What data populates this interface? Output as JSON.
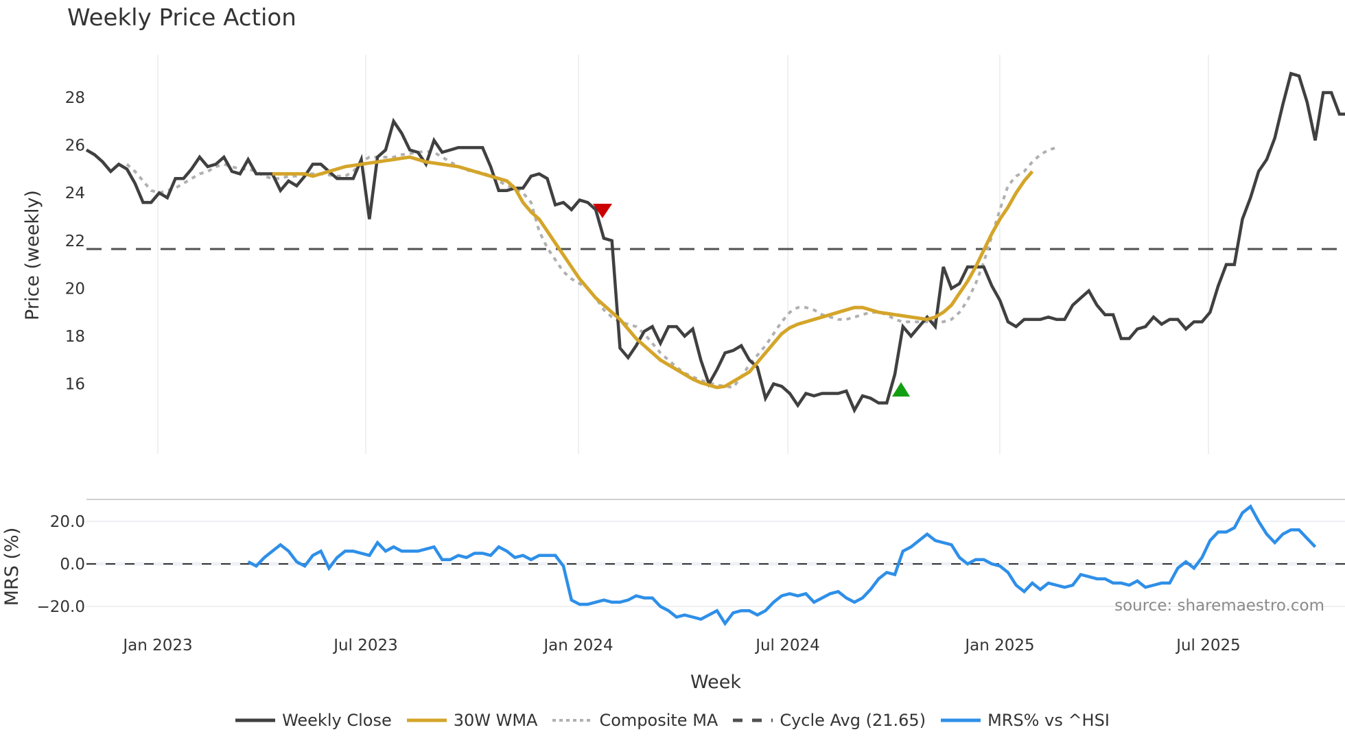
{
  "title": "Weekly Price Action",
  "source_label": "source: sharemaestro.com",
  "colors": {
    "close": "#404040",
    "wma": "#D4A52A",
    "composite": "#B0B0B0",
    "cycle": "#505050",
    "mrs": "#2E8FE8",
    "sell_marker": "#CC0000",
    "buy_marker": "#12A012",
    "grid": "#E8ECF0"
  },
  "legend": [
    {
      "key": "close",
      "label": "Weekly Close"
    },
    {
      "key": "wma",
      "label": "30W WMA"
    },
    {
      "key": "composite",
      "label": "Composite MA"
    },
    {
      "key": "cycle",
      "label": "Cycle Avg (21.65)"
    },
    {
      "key": "mrs",
      "label": "MRS% vs ^HSI"
    }
  ],
  "chart_data": [
    {
      "type": "line",
      "title": "Weekly Price Action",
      "xlabel": "Week",
      "ylabel": "Price (weekly)",
      "ylim": [
        14.5,
        29.8
      ],
      "yticks": [
        16,
        18,
        20,
        22,
        24,
        26,
        28
      ],
      "xticks": [
        "Jan 2023",
        "Jul 2023",
        "Jan 2024",
        "Jul 2024",
        "Jan 2025",
        "Jul 2025"
      ],
      "x_start_week_index": 0,
      "series": [
        {
          "name": "Weekly Close",
          "start": 0,
          "values": [
            25.8,
            25.6,
            25.3,
            24.9,
            25.2,
            25.0,
            24.4,
            23.6,
            23.6,
            24.0,
            23.8,
            24.6,
            24.6,
            25.0,
            25.5,
            25.1,
            25.2,
            25.5,
            24.9,
            24.8,
            25.4,
            24.8,
            24.8,
            24.8,
            24.1,
            24.5,
            24.3,
            24.7,
            25.2,
            25.2,
            24.9,
            24.6,
            24.6,
            24.6,
            25.4,
            22.9,
            25.5,
            25.8,
            27.0,
            26.5,
            25.8,
            25.7,
            25.2,
            26.2,
            25.7,
            25.8,
            25.9,
            25.9,
            25.9,
            25.9,
            25.1,
            24.1,
            24.1,
            24.2,
            24.2,
            24.7,
            24.8,
            24.6,
            23.5,
            23.6,
            23.3,
            23.7,
            23.6,
            23.3,
            22.1,
            22.0,
            17.5,
            17.1,
            17.6,
            18.2,
            18.4,
            17.7,
            18.4,
            18.4,
            18.0,
            18.3,
            17.0,
            16.0,
            16.6,
            17.3,
            17.4,
            17.6,
            17.0,
            16.7,
            15.4,
            16.0,
            15.9,
            15.6,
            15.1,
            15.6,
            15.5,
            15.6,
            15.6,
            15.6,
            15.7,
            14.9,
            15.5,
            15.4,
            15.2,
            15.2,
            16.4,
            18.4,
            18.0,
            18.4,
            18.8,
            18.4,
            20.9,
            20.0,
            20.2,
            20.9,
            20.9,
            20.9,
            20.1,
            19.5,
            18.6,
            18.4,
            18.7,
            18.7,
            18.7,
            18.8,
            18.7,
            18.7,
            19.3,
            19.6,
            19.9,
            19.3,
            18.9,
            18.9,
            17.9,
            17.9,
            18.3,
            18.4,
            18.8,
            18.5,
            18.7,
            18.7,
            18.3,
            18.6,
            18.6,
            19.0,
            20.1,
            21.0,
            21.0,
            22.9,
            23.8,
            24.9,
            25.4,
            26.3,
            27.7,
            29.0,
            28.9,
            27.8,
            26.2,
            28.2,
            28.2,
            27.3,
            27.3,
            26.8
          ]
        },
        {
          "name": "30W WMA",
          "start": 23,
          "values": [
            24.8,
            24.8,
            24.8,
            24.8,
            24.8,
            24.7,
            24.8,
            24.9,
            25.0,
            25.1,
            25.15,
            25.2,
            25.25,
            25.3,
            25.35,
            25.4,
            25.45,
            25.5,
            25.4,
            25.3,
            25.25,
            25.2,
            25.15,
            25.1,
            25.0,
            24.9,
            24.8,
            24.7,
            24.6,
            24.5,
            24.2,
            23.6,
            23.2,
            22.9,
            22.4,
            21.9,
            21.4,
            20.9,
            20.4,
            20.0,
            19.6,
            19.3,
            19.0,
            18.7,
            18.3,
            17.9,
            17.6,
            17.3,
            17.0,
            16.8,
            16.6,
            16.4,
            16.2,
            16.05,
            15.95,
            15.85,
            15.9,
            16.1,
            16.3,
            16.5,
            16.9,
            17.3,
            17.7,
            18.1,
            18.35,
            18.5,
            18.6,
            18.7,
            18.8,
            18.9,
            19.0,
            19.1,
            19.2,
            19.2,
            19.1,
            19.0,
            18.95,
            18.9,
            18.85,
            18.8,
            18.75,
            18.7,
            18.8,
            19.0,
            19.3,
            19.8,
            20.3,
            20.9,
            21.6,
            22.3,
            22.9,
            23.4,
            24.0,
            24.5,
            24.9
          ]
        },
        {
          "name": "Composite MA",
          "start": 5,
          "values": [
            25.2,
            24.9,
            24.5,
            24.1,
            24.0,
            24.1,
            24.2,
            24.4,
            24.6,
            24.8,
            24.9,
            25.1,
            25.2,
            25.1,
            25.0,
            25.0,
            24.9,
            24.7,
            24.6,
            24.6,
            24.7,
            24.7,
            24.8,
            24.8,
            24.8,
            24.75,
            24.7,
            24.7,
            24.9,
            25.3,
            25.5,
            25.5,
            25.5,
            25.5,
            25.6,
            25.65,
            25.7,
            25.75,
            25.7,
            25.5,
            25.3,
            25.1,
            24.95,
            24.9,
            24.85,
            24.7,
            24.5,
            24.3,
            24.2,
            24.0,
            23.6,
            22.4,
            21.7,
            21.2,
            20.7,
            20.4,
            20.2,
            20.0,
            19.6,
            19.1,
            18.8,
            18.6,
            18.5,
            18.4,
            18.1,
            17.7,
            17.3,
            17.0,
            16.7,
            16.45,
            16.3,
            16.15,
            16.05,
            15.95,
            15.9,
            15.85,
            16.3,
            16.8,
            17.2,
            17.6,
            18.1,
            18.6,
            19.0,
            19.2,
            19.2,
            19.1,
            18.9,
            18.8,
            18.7,
            18.7,
            18.8,
            18.9,
            19.0,
            19.0,
            18.9,
            18.7,
            18.6,
            18.6,
            18.6,
            18.6,
            18.6,
            18.6,
            18.7,
            19.0,
            19.5,
            20.2,
            21.1,
            22.2,
            23.3,
            24.3,
            24.7,
            24.9,
            25.3,
            25.6,
            25.8,
            25.9
          ]
        },
        {
          "name": "Cycle Avg (21.65)",
          "constant": 21.65
        }
      ],
      "markers": [
        {
          "type": "sell",
          "shape": "triangle-down",
          "x_label": "Jan 2024",
          "price": 23.6
        },
        {
          "type": "buy",
          "shape": "triangle-up",
          "x_label": "Oct 2024",
          "price": 16.6
        }
      ]
    },
    {
      "type": "line",
      "xlabel": "Week",
      "ylabel": "MRS (%)",
      "ylim": [
        -30,
        30
      ],
      "yticks": [
        -20.0,
        0.0,
        20.0
      ],
      "series": [
        {
          "name": "MRS% vs ^HSI",
          "start": 20,
          "values": [
            1,
            -1,
            3,
            6,
            9,
            6,
            1,
            -1,
            4,
            6,
            -2,
            3,
            6,
            6,
            5,
            4,
            10,
            6,
            8,
            6,
            6,
            6,
            7,
            8,
            2,
            2,
            4,
            3,
            5,
            5,
            4,
            8,
            6,
            3,
            4,
            2,
            4,
            4,
            4,
            -1,
            -17,
            -19,
            -19,
            -18,
            -17,
            -18,
            -18,
            -17,
            -15,
            -16,
            -16,
            -20,
            -22,
            -25,
            -24,
            -25,
            -26,
            -24,
            -22,
            -28,
            -23,
            -22,
            -22,
            -24,
            -22,
            -18,
            -15,
            -14,
            -15,
            -14,
            -18,
            -16,
            -14,
            -13,
            -16,
            -18,
            -16,
            -12,
            -7,
            -4,
            -5,
            6,
            8,
            11,
            14,
            11,
            10,
            9,
            3,
            0,
            2,
            2,
            0,
            -1,
            -4,
            -10,
            -13,
            -9,
            -12,
            -9,
            -10,
            -11,
            -10,
            -5,
            -6,
            -7,
            -7,
            -9,
            -9,
            -10,
            -8,
            -11,
            -10,
            -9,
            -9,
            -2,
            1,
            -2,
            3,
            11,
            15,
            15,
            17,
            24,
            27,
            20,
            14,
            10,
            14,
            16,
            16,
            12,
            8
          ]
        }
      ]
    }
  ],
  "axes": {
    "price_ylabel": "Price (weekly)",
    "mrs_ylabel": "MRS (%)",
    "xlabel": "Week",
    "price_yticks": [
      "16",
      "18",
      "20",
      "22",
      "24",
      "26",
      "28"
    ],
    "mrs_yticks": [
      "20.0",
      "0.0",
      "−20.0"
    ],
    "xticks": [
      "Jan 2023",
      "Jul 2023",
      "Jan 2024",
      "Jul 2024",
      "Jan 2025",
      "Jul 2025"
    ]
  }
}
